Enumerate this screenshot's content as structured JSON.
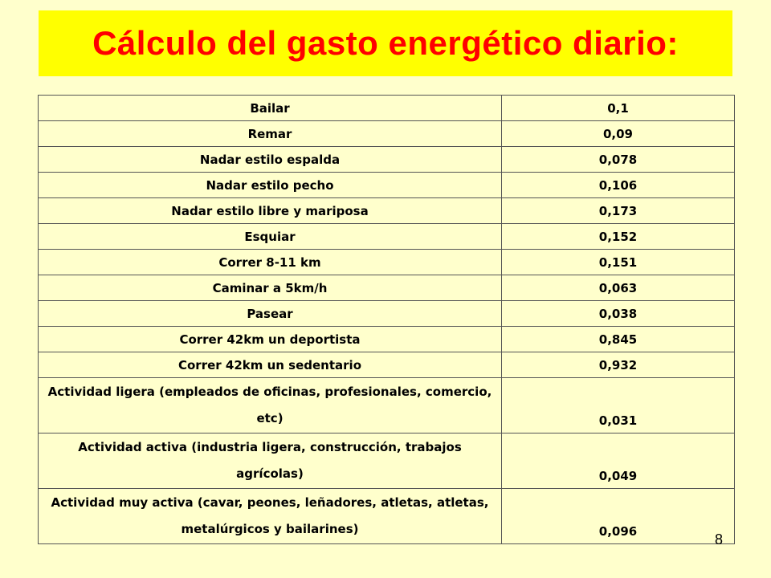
{
  "title": "Cálculo del gasto energético diario:",
  "rows": [
    {
      "activity": "Bailar",
      "value": "0,1"
    },
    {
      "activity": "Remar",
      "value": "0,09"
    },
    {
      "activity": "Nadar estilo espalda",
      "value": "0,078"
    },
    {
      "activity": "Nadar estilo pecho",
      "value": "0,106"
    },
    {
      "activity": "Nadar estilo libre y mariposa",
      "value": "0,173"
    },
    {
      "activity": "Esquiar",
      "value": "0,152"
    },
    {
      "activity": "Correr 8-11 km",
      "value": "0,151"
    },
    {
      "activity": "Caminar a 5km/h",
      "value": "0,063"
    },
    {
      "activity": "Pasear",
      "value": "0,038"
    },
    {
      "activity": "Correr 42km un deportista",
      "value": "0,845"
    },
    {
      "activity": "Correr 42km un sedentario",
      "value": "0,932"
    },
    {
      "activity": "Actividad ligera (empleados de oficinas, profesionales, comercio, etc)",
      "value": "0,031"
    },
    {
      "activity": "Actividad activa (industria ligera, construcción, trabajos agrícolas)",
      "value": "0,049"
    },
    {
      "activity": "Actividad muy activa (cavar, peones, leñadores, atletas, atletas, metalúrgicos y bailarines)",
      "value": "0,096"
    }
  ],
  "slide_number": "8",
  "colors": {
    "background": "#FFFFCC",
    "title_band": "#FFFF00",
    "title_text": "#FF0000"
  }
}
